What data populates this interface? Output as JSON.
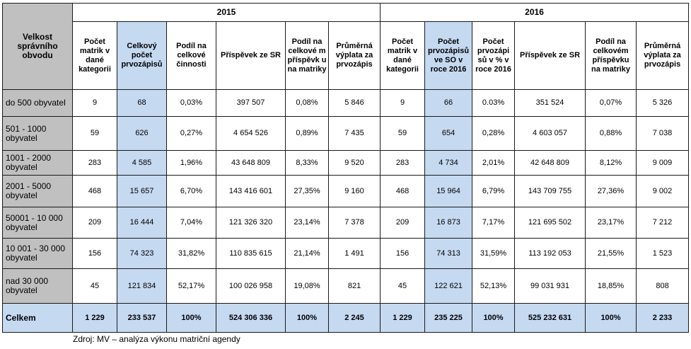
{
  "corner_header": "Velkost správního obvodu",
  "years": [
    "2015",
    "2016"
  ],
  "columns_2015": [
    "Počet matrik v dané kategorii",
    "Celkový počet prvozápisů",
    "Podíl na celkové činnosti",
    "Příspěvek ze SR",
    "Podíl na celkové m příspěvk u na matriky",
    "Průměrná výplata za prvozápis"
  ],
  "columns_2016": [
    "Počet matrik v dané kategorii",
    "Počet prvozápisů ve SO v roce 2016",
    "Počet prvozápi sů v % v roce 2016",
    "Příspěvek ze SR",
    "Podíl na celkovém příspěvku na matriky",
    "Průměrná výplata za prvozápis"
  ],
  "rows": [
    {
      "label": "do 500 obyvatel",
      "cells": [
        "9",
        "68",
        "0,03%",
        "397 507",
        "0,08%",
        "5 846",
        "9",
        "66",
        "0.03%",
        "351 524",
        "0,07%",
        "5 326"
      ]
    },
    {
      "label": "501 - 1000 obyvatel",
      "cells": [
        "59",
        "626",
        "0,27%",
        "4 654 526",
        "0,89%",
        "7 435",
        "59",
        "654",
        "0,28%",
        "4 603 057",
        "0,88%",
        "7 038"
      ]
    },
    {
      "label": "1001 - 2000 obyvatel",
      "cells": [
        "283",
        "4 585",
        "1,96%",
        "43 648 809",
        "8,33%",
        "9 520",
        "283",
        "4 734",
        "2,01%",
        "42 648 809",
        "8,12%",
        "9 009"
      ]
    },
    {
      "label": "2001 - 5000 obyvatel",
      "cells": [
        "468",
        "15 657",
        "6,70%",
        "143 416 601",
        "27,35%",
        "9 160",
        "468",
        "15 964",
        "6,79%",
        "143 709 755",
        "27,36%",
        "9 002"
      ]
    },
    {
      "label": "50001 - 10 000 obyvatel",
      "cells": [
        "209",
        "16 444",
        "7,04%",
        "121 326 320",
        "23,14%",
        "7 378",
        "209",
        "16 873",
        "7,17%",
        "121 695 502",
        "23,17%",
        "7 212"
      ]
    },
    {
      "label": "10 001 - 30 000 obyvatel",
      "cells": [
        "156",
        "74 323",
        "31,82%",
        "110 835 615",
        "21,14%",
        "1 491",
        "156",
        "74 313",
        "31,59%",
        "113 192 053",
        "21,55%",
        "1 523"
      ]
    },
    {
      "label": "nad 30 000 obyvatel",
      "cells": [
        "45",
        "121 834",
        "52,17%",
        "100 026 958",
        "19,08%",
        "821",
        "45",
        "122 621",
        "52,13%",
        "99 031 931",
        "18,85%",
        "808"
      ]
    }
  ],
  "total": {
    "label": "Celkem",
    "cells": [
      "1 229",
      "233 537",
      "100%",
      "524 306 336",
      "100%",
      "2 245",
      "1 229",
      "235 225",
      "100%",
      "525 232 631",
      "100%",
      "2 233"
    ]
  },
  "source": "Zdroj: MV – analýza výkonu matriční agendy"
}
